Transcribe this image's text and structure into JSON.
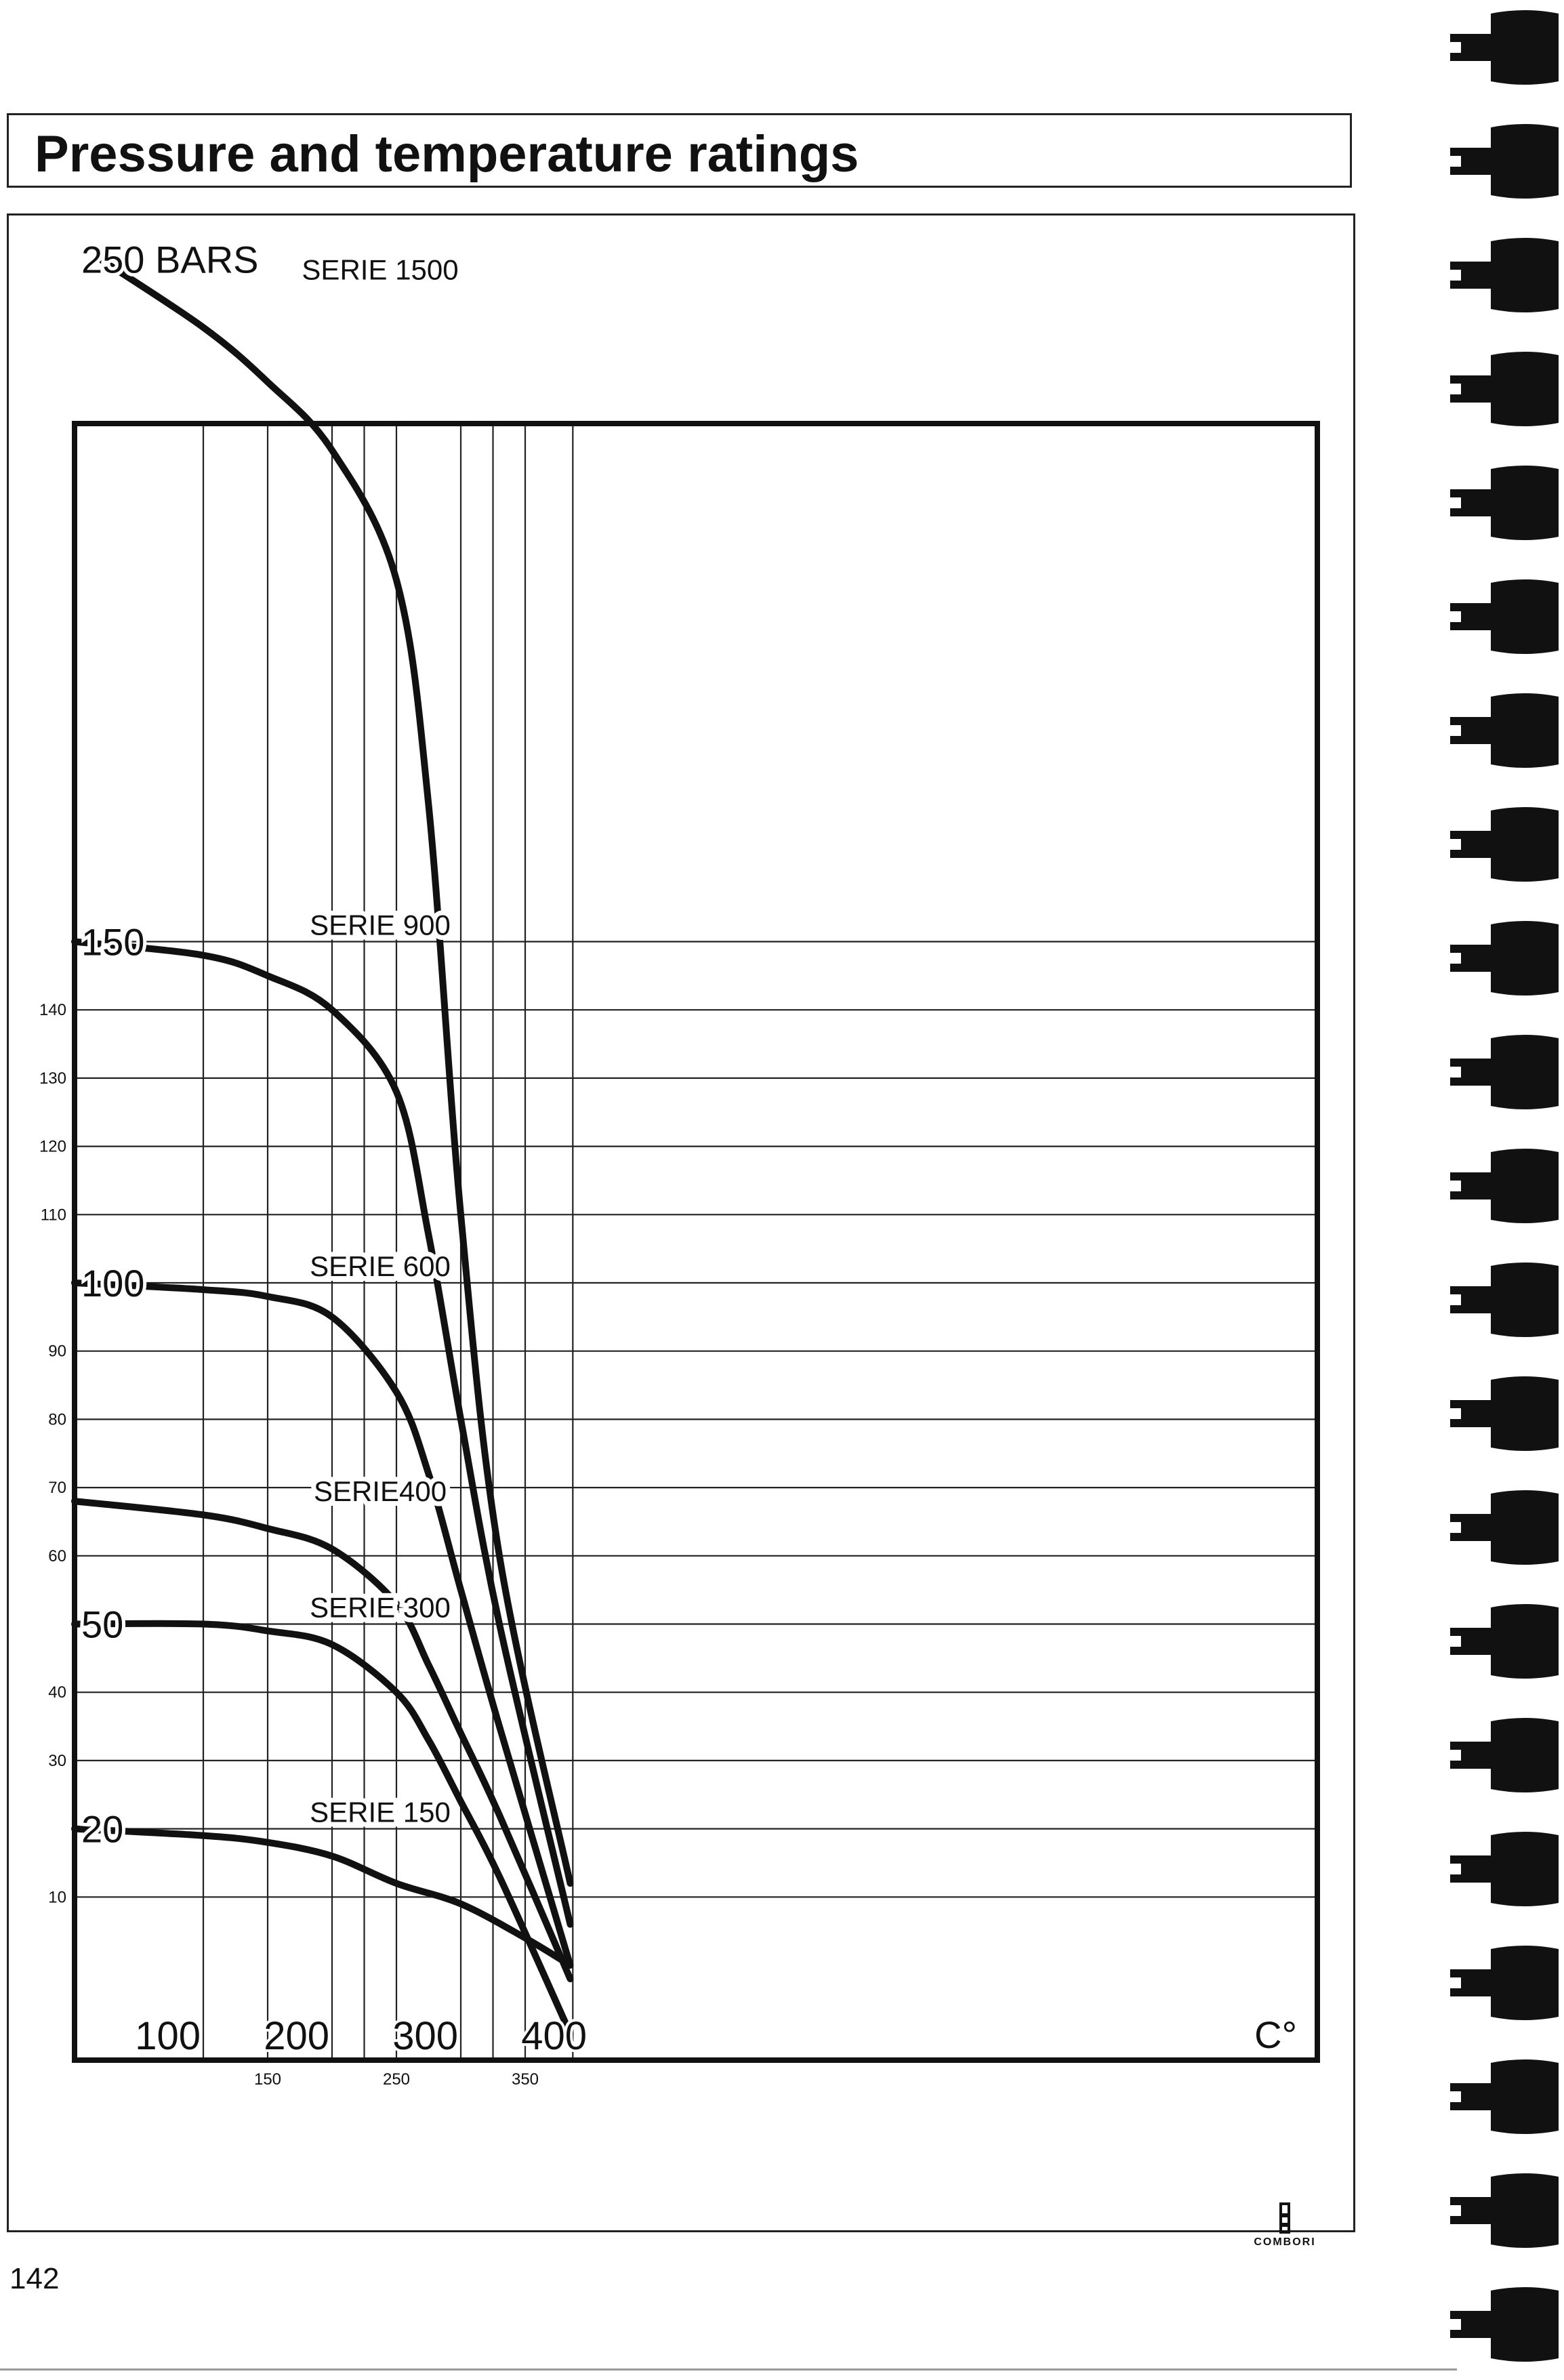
{
  "page": {
    "title": "Pressure and temperature ratings",
    "page_number": "142",
    "brand": "COMBORI"
  },
  "chart_data": {
    "type": "line",
    "title": "",
    "xlabel": "C°",
    "ylabel": "",
    "xlim": [
      0,
      470
    ],
    "ylim": [
      0,
      258
    ],
    "major_y_labels": [
      {
        "value": 250,
        "text": "250 BARS"
      },
      {
        "value": 150,
        "text": "150"
      },
      {
        "value": 100,
        "text": "100"
      },
      {
        "value": 50,
        "text": "50"
      },
      {
        "value": 20,
        "text": "20"
      }
    ],
    "minor_y_labels": [
      {
        "value": 140,
        "text": "140"
      },
      {
        "value": 130,
        "text": "130"
      },
      {
        "value": 120,
        "text": "120"
      },
      {
        "value": 110,
        "text": "110"
      },
      {
        "value": 90,
        "text": "90"
      },
      {
        "value": 80,
        "text": "80"
      },
      {
        "value": 70,
        "text": "70"
      },
      {
        "value": 60,
        "text": "60"
      },
      {
        "value": 40,
        "text": "40"
      },
      {
        "value": 30,
        "text": "30"
      },
      {
        "value": 10,
        "text": "10"
      }
    ],
    "major_x_labels": [
      {
        "value": 100,
        "text": "100"
      },
      {
        "value": 200,
        "text": "200"
      },
      {
        "value": 300,
        "text": "300"
      },
      {
        "value": 400,
        "text": "400"
      }
    ],
    "minor_x_labels": [
      {
        "value": 150,
        "text": "150"
      },
      {
        "value": 250,
        "text": "250"
      },
      {
        "value": 350,
        "text": "350"
      }
    ],
    "x_unit_label": "C°",
    "vertical_gridlines": [
      100,
      150,
      200,
      225,
      250,
      300,
      325,
      350,
      387
    ],
    "horizontal_gridlines": [
      150,
      140,
      130,
      120,
      110,
      100,
      90,
      80,
      70,
      60,
      50,
      40,
      30,
      20,
      10
    ],
    "grid": true,
    "series": [
      {
        "name": "SERIE 1500",
        "label_at": [
          190,
          247
        ],
        "points": [
          [
            20,
            250
          ],
          [
            100,
            240
          ],
          [
            150,
            232
          ],
          [
            200,
            222
          ],
          [
            250,
            203
          ],
          [
            275,
            170
          ],
          [
            300,
            110
          ],
          [
            330,
            60
          ],
          [
            385,
            12
          ]
        ]
      },
      {
        "name": "SERIE 900",
        "label_at": [
          190,
          151
        ],
        "points": [
          [
            0,
            150
          ],
          [
            100,
            148
          ],
          [
            150,
            145
          ],
          [
            200,
            140
          ],
          [
            250,
            128
          ],
          [
            275,
            107
          ],
          [
            300,
            80
          ],
          [
            330,
            50
          ],
          [
            385,
            6
          ]
        ]
      },
      {
        "name": "SERIE 600",
        "label_at": [
          190,
          101
        ],
        "points": [
          [
            0,
            100
          ],
          [
            100,
            99
          ],
          [
            150,
            98
          ],
          [
            200,
            95
          ],
          [
            250,
            84
          ],
          [
            275,
            72
          ],
          [
            300,
            55
          ],
          [
            330,
            35
          ],
          [
            385,
            0
          ]
        ]
      },
      {
        "name": "SERIE400",
        "label_at": [
          190,
          68
        ],
        "points": [
          [
            0,
            68
          ],
          [
            100,
            66
          ],
          [
            150,
            64
          ],
          [
            200,
            61
          ],
          [
            250,
            53
          ],
          [
            275,
            44
          ],
          [
            300,
            34
          ],
          [
            330,
            22
          ],
          [
            385,
            -2
          ]
        ]
      },
      {
        "name": "SERIE 300",
        "label_at": [
          190,
          51
        ],
        "points": [
          [
            0,
            50
          ],
          [
            100,
            50
          ],
          [
            150,
            49
          ],
          [
            200,
            47
          ],
          [
            250,
            40
          ],
          [
            275,
            33
          ],
          [
            300,
            24
          ],
          [
            330,
            13
          ],
          [
            385,
            -10
          ]
        ]
      },
      {
        "name": "SERIE 150",
        "label_at": [
          190,
          21
        ],
        "points": [
          [
            0,
            20
          ],
          [
            100,
            19
          ],
          [
            150,
            18
          ],
          [
            200,
            16
          ],
          [
            250,
            12
          ],
          [
            300,
            9
          ],
          [
            350,
            4
          ],
          [
            385,
            0
          ]
        ]
      }
    ]
  }
}
